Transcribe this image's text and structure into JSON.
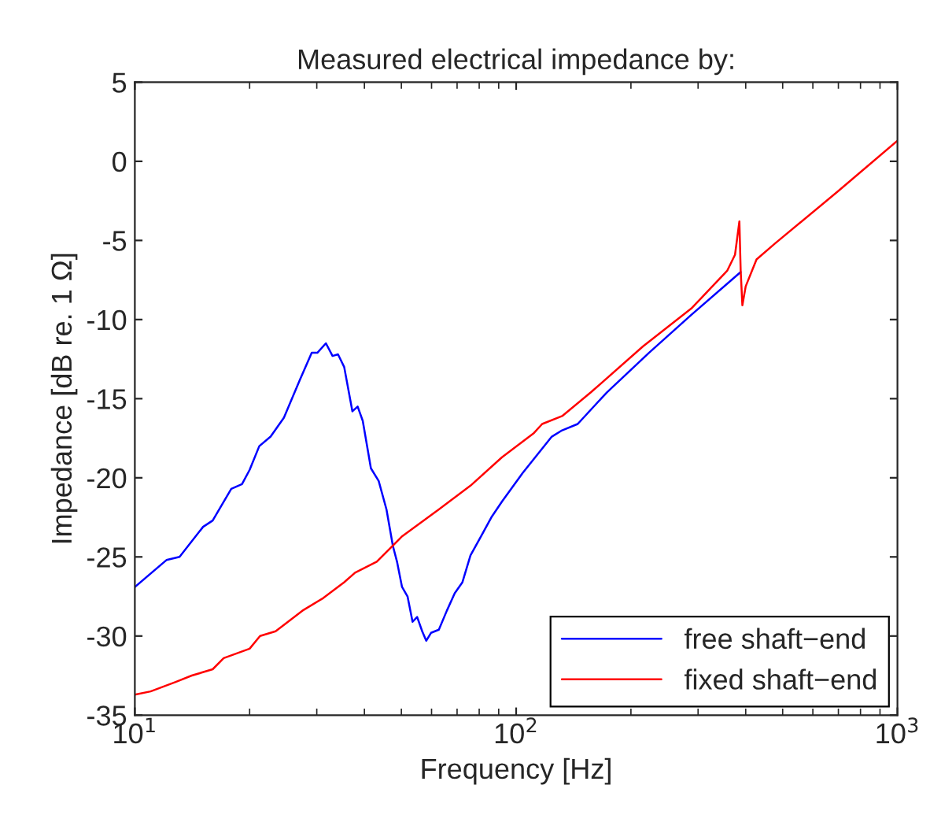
{
  "chart_data": {
    "type": "line",
    "title": "Measured electrical impedance by:",
    "xlabel": "Frequency [Hz]",
    "ylabel": "Impedance [dB re. 1 Ω]",
    "log": "x",
    "xlim": [
      10,
      1000
    ],
    "xticks": [
      {
        "value": 10,
        "label": "10$^{1}$"
      },
      {
        "value": 100,
        "label": "10$^{2}$"
      },
      {
        "value": 1000,
        "label": "10$^{3}$"
      }
    ],
    "ylim": [
      -35,
      5
    ],
    "yticks": [
      -35,
      -30,
      -25,
      -20,
      -15,
      -10,
      -5,
      0,
      5
    ],
    "grid": false,
    "legend": "bottom right",
    "marker": "none",
    "line_style": "solid",
    "series": [
      {
        "name": "free shaft−end",
        "color": "#0000ff",
        "x": [
          10,
          12.1,
          13.1,
          15.1,
          16.0,
          17.9,
          19.1,
          20.0,
          21.2,
          22.7,
          24.6,
          27.1,
          29.1,
          30.1,
          31.7,
          33.0,
          34.1,
          35.4,
          37.2,
          38.4,
          39.6,
          41.6,
          43.6,
          45.7,
          47.5,
          48.7,
          50.2,
          51.9,
          53.5,
          55.0,
          56.7,
          58.1,
          59.8,
          62.7,
          65.8,
          69.0,
          72.3,
          75.9,
          80.9,
          86.1,
          91.8,
          104,
          124,
          132,
          145,
          173,
          223,
          288,
          388
        ],
        "values": [
          -26.9,
          -25.2,
          -25.0,
          -23.1,
          -22.7,
          -20.7,
          -20.4,
          -19.5,
          -18.0,
          -17.4,
          -16.2,
          -13.8,
          -12.1,
          -12.1,
          -11.5,
          -12.3,
          -12.2,
          -13.0,
          -15.8,
          -15.5,
          -16.4,
          -19.4,
          -20.2,
          -22.0,
          -24.3,
          -25.3,
          -26.9,
          -27.5,
          -29.1,
          -28.8,
          -29.7,
          -30.3,
          -29.8,
          -29.6,
          -28.4,
          -27.3,
          -26.6,
          -24.9,
          -23.7,
          -22.5,
          -21.5,
          -19.7,
          -17.4,
          -17.0,
          -16.6,
          -14.6,
          -12.1,
          -9.7,
          -7.0
        ]
      },
      {
        "name": "fixed shaft−end",
        "color": "#ff0000",
        "x": [
          10,
          11.0,
          12.8,
          14.1,
          16.0,
          17.1,
          20.0,
          21.3,
          23.4,
          27.5,
          31.2,
          35.4,
          37.8,
          43.1,
          50.2,
          62.7,
          75.9,
          91.8,
          111,
          117,
          132,
          157,
          215,
          288,
          358,
          375,
          385,
          388,
          392,
          400,
          427,
          477,
          698,
          1000
        ],
        "values": [
          -33.7,
          -33.5,
          -32.9,
          -32.5,
          -32.1,
          -31.4,
          -30.8,
          -30.0,
          -29.7,
          -28.4,
          -27.6,
          -26.6,
          -26.0,
          -25.3,
          -23.7,
          -22.0,
          -20.5,
          -18.7,
          -17.2,
          -16.6,
          -16.1,
          -14.6,
          -11.7,
          -9.3,
          -6.9,
          -5.9,
          -3.8,
          -6.9,
          -9.1,
          -7.9,
          -6.2,
          -5.2,
          -1.9,
          1.3
        ]
      }
    ]
  }
}
